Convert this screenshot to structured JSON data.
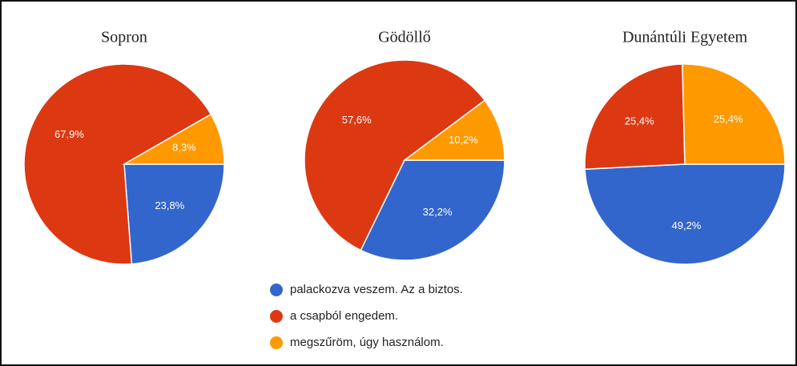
{
  "legend": {
    "labels": [
      "palackozva veszem. Az a biztos.",
      "a csapból engedem.",
      "megszűröm, úgy használom."
    ],
    "colors": [
      "#3366cc",
      "#dc3912",
      "#ff9900"
    ]
  },
  "chart_data": [
    {
      "type": "pie",
      "title": "Sopron",
      "values": [
        23.8,
        67.9,
        8.3
      ],
      "value_labels": [
        "23,8%",
        "67,9%",
        "8,3%"
      ]
    },
    {
      "type": "pie",
      "title": "Gödöllő",
      "values": [
        32.2,
        57.6,
        10.2
      ],
      "value_labels": [
        "32,2%",
        "57,6%",
        "10,2%"
      ]
    },
    {
      "type": "pie",
      "title": "Dunántúli Egyetem",
      "values": [
        49.2,
        25.4,
        25.4
      ],
      "value_labels": [
        "49,2%",
        "25,4%",
        "25,4%"
      ]
    }
  ]
}
